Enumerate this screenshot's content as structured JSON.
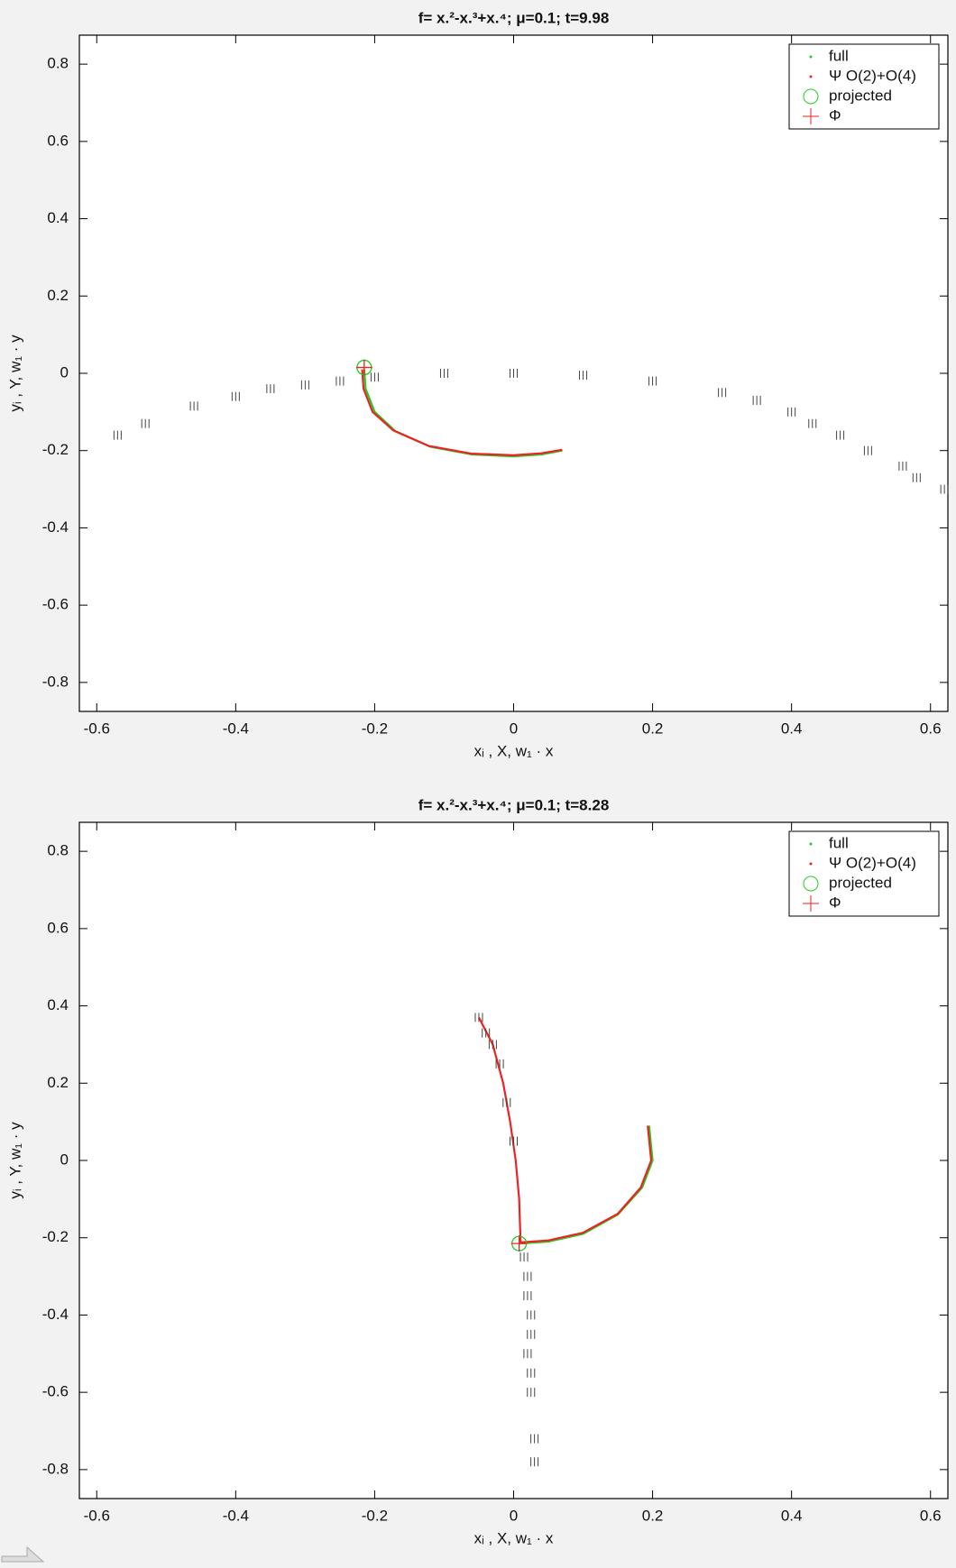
{
  "chart_data": [
    {
      "type": "line",
      "title": "f= x.²-x.³+x.⁴;  μ=0.1; t=9.98",
      "xlabel": "xᵢ , X, w₁ · x",
      "ylabel": "yᵢ , Y, w₁ · y",
      "xlim": [
        -0.625,
        0.625
      ],
      "ylim": [
        -0.875,
        0.875
      ],
      "xticks": [
        -0.6,
        -0.4,
        -0.2,
        0,
        0.2,
        0.4,
        0.6
      ],
      "yticks": [
        -0.8,
        -0.6,
        -0.4,
        -0.2,
        0,
        0.2,
        0.4,
        0.6,
        0.8
      ],
      "legend": "upper right",
      "series": [
        {
          "name": "full",
          "color": "#22cc22",
          "marker": "dot",
          "x": [
            -0.215,
            -0.213,
            -0.2,
            -0.17,
            -0.12,
            -0.06,
            0,
            0.04,
            0.07
          ],
          "values": [
            0.01,
            -0.04,
            -0.1,
            -0.15,
            -0.19,
            -0.21,
            -0.215,
            -0.21,
            -0.2
          ]
        },
        {
          "name": "Ψ O(2)+O(4)",
          "color": "#ee2222",
          "marker": "dot",
          "x": [
            -0.218,
            -0.216,
            -0.203,
            -0.173,
            -0.122,
            -0.061,
            0,
            0.04,
            0.07
          ],
          "values": [
            0.01,
            -0.04,
            -0.1,
            -0.148,
            -0.188,
            -0.208,
            -0.212,
            -0.207,
            -0.198
          ]
        },
        {
          "name": "projected",
          "color": "#22cc22",
          "marker": "circle",
          "x": [
            -0.215
          ],
          "values": [
            0.015
          ]
        },
        {
          "name": "Φ",
          "color": "#ee2222",
          "marker": "plus",
          "x": [
            -0.215
          ],
          "values": [
            0.015
          ]
        },
        {
          "color": "#444444",
          "marker": "tick",
          "x": [
            -0.57,
            -0.53,
            -0.46,
            -0.4,
            -0.35,
            -0.3,
            -0.25,
            -0.2,
            -0.1,
            0,
            0.1,
            0.2,
            0.3,
            0.35,
            0.4,
            0.43,
            0.47,
            0.51,
            0.56,
            0.58,
            0.62
          ],
          "values": [
            -0.16,
            -0.13,
            -0.085,
            -0.06,
            -0.04,
            -0.03,
            -0.02,
            -0.01,
            0,
            0,
            -0.005,
            -0.02,
            -0.05,
            -0.07,
            -0.1,
            -0.13,
            -0.16,
            -0.2,
            -0.24,
            -0.27,
            -0.3
          ]
        }
      ]
    },
    {
      "type": "line",
      "title": "f= x.²-x.³+x.⁴;  μ=0.1; t=8.28",
      "xlabel": "xᵢ , X, w₁ · x",
      "ylabel": "yᵢ , Y, w₁ · y",
      "xlim": [
        -0.625,
        0.625
      ],
      "ylim": [
        -0.875,
        0.875
      ],
      "xticks": [
        -0.6,
        -0.4,
        -0.2,
        0,
        0.2,
        0.4,
        0.6
      ],
      "yticks": [
        -0.8,
        -0.6,
        -0.4,
        -0.2,
        0,
        0.2,
        0.4,
        0.6,
        0.8
      ],
      "legend": "upper right",
      "series": [
        {
          "name": "full",
          "color": "#22cc22",
          "marker": "dot",
          "x": [
            0.008,
            0.05,
            0.1,
            0.15,
            0.185,
            0.2,
            0.195
          ],
          "values": [
            -0.215,
            -0.21,
            -0.19,
            -0.14,
            -0.07,
            0,
            0.09
          ]
        },
        {
          "name": "Ψ O(2)+O(4)",
          "color": "#ee2222",
          "marker": "dot",
          "x": [
            -0.05,
            -0.03,
            -0.015,
            -0.005,
            0.003,
            0.008,
            0.01,
            0.05,
            0.1,
            0.15,
            0.183,
            0.198,
            0.193
          ],
          "values": [
            0.37,
            0.3,
            0.2,
            0.1,
            0,
            -0.1,
            -0.212,
            -0.207,
            -0.187,
            -0.138,
            -0.07,
            0,
            0.09
          ]
        },
        {
          "name": "projected",
          "color": "#22cc22",
          "marker": "circle",
          "x": [
            0.008
          ],
          "values": [
            -0.215
          ]
        },
        {
          "name": "Φ",
          "color": "#ee2222",
          "marker": "plus",
          "x": [
            0.008
          ],
          "values": [
            -0.215
          ]
        },
        {
          "color": "#444444",
          "marker": "tick",
          "x": [
            -0.05,
            -0.04,
            -0.03,
            -0.02,
            -0.01,
            0,
            0.015,
            0.02,
            0.02,
            0.025,
            0.025,
            0.02,
            0.025,
            0.025,
            0.03,
            0.03
          ],
          "values": [
            0.37,
            0.33,
            0.3,
            0.25,
            0.15,
            0.05,
            -0.25,
            -0.3,
            -0.35,
            -0.4,
            -0.45,
            -0.5,
            -0.55,
            -0.6,
            -0.72,
            -0.78
          ]
        }
      ]
    }
  ]
}
